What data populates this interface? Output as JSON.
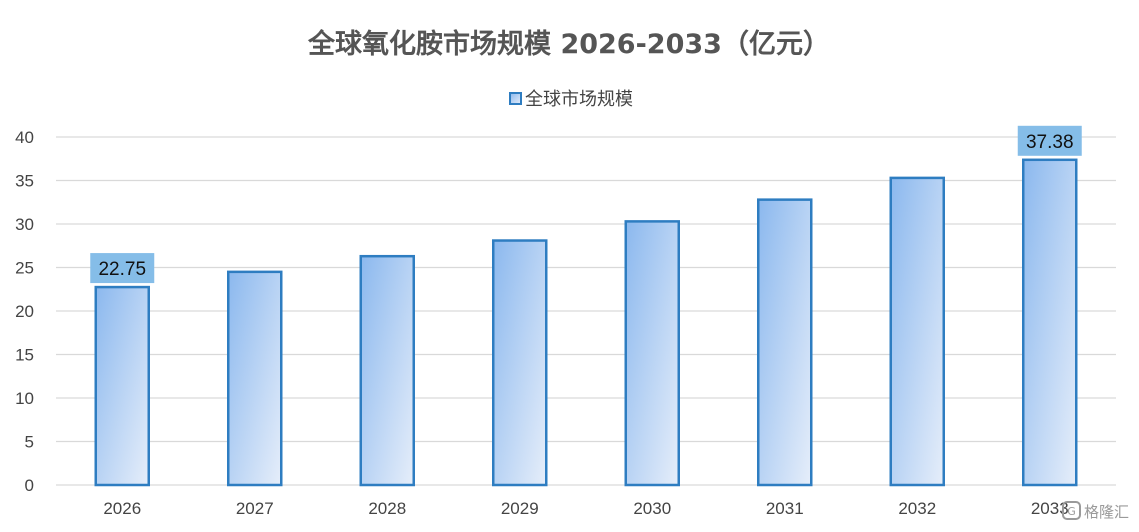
{
  "chart_data": {
    "type": "bar",
    "title": "全球氧化胺市场规模 2026-2033（亿元）",
    "xlabel": "",
    "ylabel": "",
    "categories": [
      "2026",
      "2027",
      "2028",
      "2029",
      "2030",
      "2031",
      "2032",
      "2033"
    ],
    "series": [
      {
        "name": "全球市场规模",
        "values": [
          22.75,
          24.5,
          26.3,
          28.1,
          30.3,
          32.8,
          35.3,
          37.38
        ]
      }
    ],
    "data_labels": [
      {
        "category": "2026",
        "text": "22.75"
      },
      {
        "category": "2033",
        "text": "37.38"
      }
    ],
    "ylim": [
      0,
      40
    ],
    "yticks": [
      0,
      5,
      10,
      15,
      20,
      25,
      30,
      35,
      40
    ],
    "grid": true,
    "legend_position": "top-center",
    "colors": {
      "bar_fill_start": "#8bb8ee",
      "bar_fill_end": "#e6eefa",
      "bar_stroke": "#2e7dc1",
      "label_box": "#85bde8",
      "gridline": "#d9d9d9"
    }
  },
  "watermark": {
    "text": "格隆汇",
    "icon": "glh-logo-icon"
  }
}
